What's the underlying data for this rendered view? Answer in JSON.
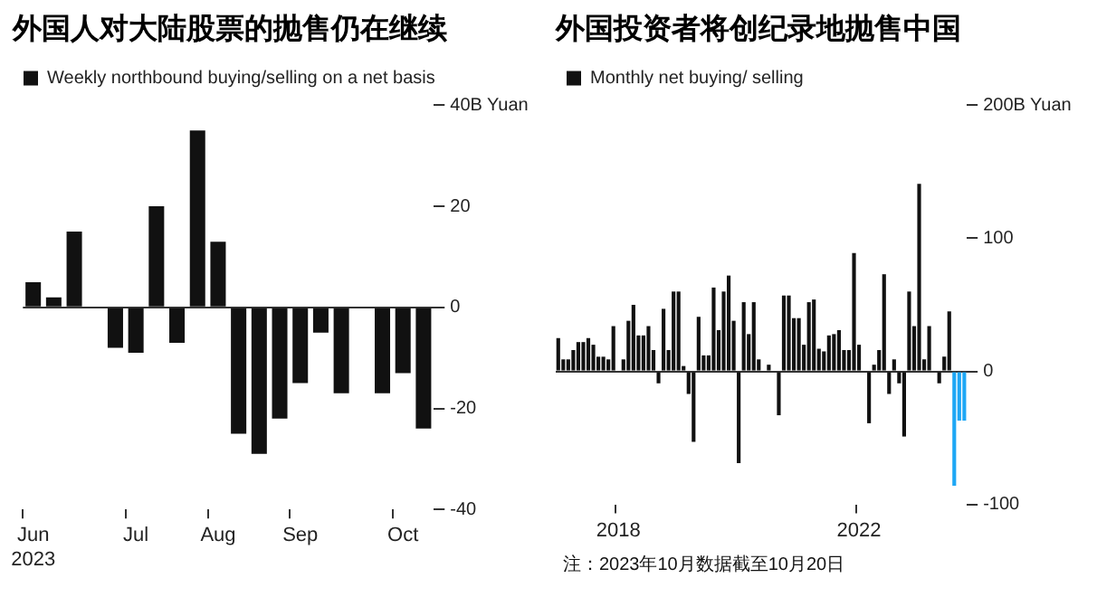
{
  "chart_data": [
    {
      "type": "bar",
      "title": "外国人对大陆股票的抛售仍在继续",
      "legend": "top left",
      "ylim": [
        -40,
        40
      ],
      "yticks": [
        -40,
        -20,
        0,
        {
          "value": 20,
          "label": "20"
        },
        {
          "value": 40,
          "label": "40B Yuan"
        }
      ],
      "categories": [
        "Jun\n2023",
        null,
        null,
        null,
        null,
        "Jul",
        null,
        null,
        null,
        "Aug",
        null,
        null,
        null,
        "Sep",
        null,
        null,
        null,
        null,
        "Oct",
        null
      ],
      "series": [
        {
          "name": "Weekly northbound buying/selling on a net basis",
          "color": "#111111",
          "values": [
            5,
            2,
            15,
            0,
            -8,
            -9,
            20,
            -7,
            35,
            13,
            -25,
            -29,
            -22,
            -15,
            -5,
            -17,
            0,
            -17,
            -13,
            -24
          ]
        }
      ]
    },
    {
      "type": "bar",
      "title": "外国投资者将创纪录地抛售中国",
      "legend": "top left",
      "ylim": [
        -100,
        200
      ],
      "yticks": [
        -100,
        0,
        100,
        {
          "value": 200,
          "label": "200B Yuan"
        }
      ],
      "annotations": [
        "注：2023年10月数据截至10月20日"
      ],
      "categories": [
        null,
        null,
        null,
        null,
        null,
        null,
        null,
        null,
        null,
        null,
        null,
        null,
        "2018",
        null,
        null,
        null,
        null,
        null,
        null,
        null,
        null,
        null,
        null,
        null,
        null,
        null,
        null,
        null,
        null,
        null,
        null,
        null,
        null,
        null,
        null,
        null,
        null,
        null,
        null,
        null,
        null,
        null,
        null,
        null,
        null,
        null,
        null,
        null,
        null,
        null,
        null,
        null,
        null,
        null,
        null,
        null,
        null,
        null,
        null,
        null,
        "2022",
        null,
        null,
        null,
        null,
        null,
        null,
        null,
        null,
        null,
        null,
        null,
        null,
        null,
        null,
        null,
        null,
        null,
        null,
        null,
        null,
        null
      ],
      "series": [
        {
          "name": "Monthly net buying/ selling",
          "colors": [
            "#111111",
            "#111111",
            "#111111",
            "#111111",
            "#111111",
            "#111111",
            "#111111",
            "#111111",
            "#111111",
            "#111111",
            "#111111",
            "#111111",
            "#111111",
            "#111111",
            "#111111",
            "#111111",
            "#111111",
            "#111111",
            "#111111",
            "#111111",
            "#111111",
            "#111111",
            "#111111",
            "#111111",
            "#111111",
            "#111111",
            "#111111",
            "#111111",
            "#111111",
            "#111111",
            "#111111",
            "#111111",
            "#111111",
            "#111111",
            "#111111",
            "#111111",
            "#111111",
            "#111111",
            "#111111",
            "#111111",
            "#111111",
            "#111111",
            "#111111",
            "#111111",
            "#111111",
            "#111111",
            "#111111",
            "#111111",
            "#111111",
            "#111111",
            "#111111",
            "#111111",
            "#111111",
            "#111111",
            "#111111",
            "#111111",
            "#111111",
            "#111111",
            "#111111",
            "#111111",
            "#111111",
            "#111111",
            "#111111",
            "#111111",
            "#111111",
            "#111111",
            "#111111",
            "#111111",
            "#111111",
            "#111111",
            "#111111",
            "#111111",
            "#111111",
            "#111111",
            "#111111",
            "#111111",
            "#111111",
            "#111111",
            "#111111",
            "#1ea7f5",
            "#1ea7f5",
            "#1ea7f5"
          ],
          "values": [
            25,
            9,
            9,
            16,
            22,
            22,
            25,
            20,
            11,
            11,
            9,
            34,
            null,
            9,
            38,
            50,
            27,
            27,
            34,
            16,
            -9,
            47,
            16,
            60,
            60,
            4,
            -17,
            -53,
            41,
            12,
            12,
            63,
            31,
            60,
            72,
            38,
            -69,
            52,
            28,
            52,
            9,
            0,
            5,
            null,
            -33,
            57,
            57,
            40,
            40,
            20,
            52,
            54,
            17,
            15,
            27,
            28,
            31,
            16,
            16,
            89,
            20,
            0,
            -39,
            5,
            16,
            73,
            -17,
            9,
            -9,
            -49,
            60,
            34,
            141,
            9,
            34,
            null,
            -9,
            11,
            45,
            -86,
            -37,
            -37
          ]
        }
      ]
    }
  ]
}
